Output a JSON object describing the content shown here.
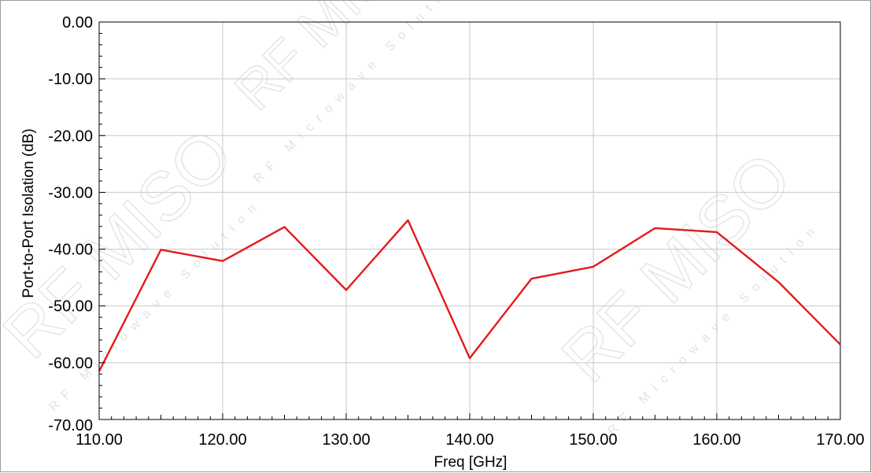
{
  "watermark": {
    "brand": "RF MISO",
    "tagline": "RF Microwave Solution"
  },
  "chart_data": {
    "type": "line",
    "title": "",
    "xlabel": "Freq [GHz]",
    "ylabel": "Port-to-Port Isolation (dB)",
    "xlim": [
      110,
      170
    ],
    "ylim": [
      -70,
      0
    ],
    "x_ticks": [
      "110.00",
      "120.00",
      "130.00",
      "140.00",
      "150.00",
      "160.00",
      "170.00"
    ],
    "y_ticks": [
      "0.00",
      "-10.00",
      "-20.00",
      "-30.00",
      "-40.00",
      "-50.00",
      "-60.00",
      "-70.00"
    ],
    "grid": true,
    "series": [
      {
        "color": "#e31b1b",
        "x": [
          110,
          115,
          120,
          125,
          130,
          135,
          140,
          145,
          150,
          155,
          160,
          165,
          170
        ],
        "y": [
          -61.5,
          -40.1,
          -42.1,
          -36.1,
          -47.2,
          -34.9,
          -59.2,
          -45.2,
          -43.1,
          -36.3,
          -37.0,
          -45.8,
          -56.8
        ]
      }
    ]
  }
}
